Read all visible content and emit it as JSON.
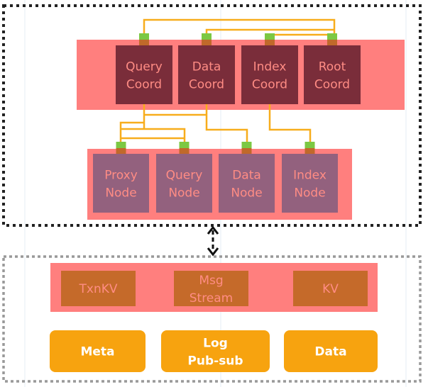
{
  "colors": {
    "band": "#ff7f7e",
    "coord_box": "#7a2d3a",
    "node_box": "#93617e",
    "box_text": "#ff8c84",
    "connector_green": "#7cc843",
    "connector_brown": "#c0692a",
    "link_line": "#f7ad1c",
    "storage_box": "#c56a2a",
    "base_box": "#f7a30f"
  },
  "coordinators": [
    {
      "line1": "Query",
      "line2": "Coord"
    },
    {
      "line1": "Data",
      "line2": "Coord"
    },
    {
      "line1": "Index",
      "line2": "Coord"
    },
    {
      "line1": "Root",
      "line2": "Coord"
    }
  ],
  "nodes": [
    {
      "line1": "Proxy",
      "line2": "Node"
    },
    {
      "line1": "Query",
      "line2": "Node"
    },
    {
      "line1": "Data",
      "line2": "Node"
    },
    {
      "line1": "Index",
      "line2": "Node"
    }
  ],
  "storage": [
    {
      "line1": "TxnKV",
      "line2": ""
    },
    {
      "line1": "Msg",
      "line2": "Stream"
    },
    {
      "line1": "KV",
      "line2": ""
    }
  ],
  "base": [
    {
      "line1": "Meta",
      "line2": ""
    },
    {
      "line1": "Log",
      "line2": "Pub-sub"
    },
    {
      "line1": "Data",
      "line2": ""
    }
  ]
}
